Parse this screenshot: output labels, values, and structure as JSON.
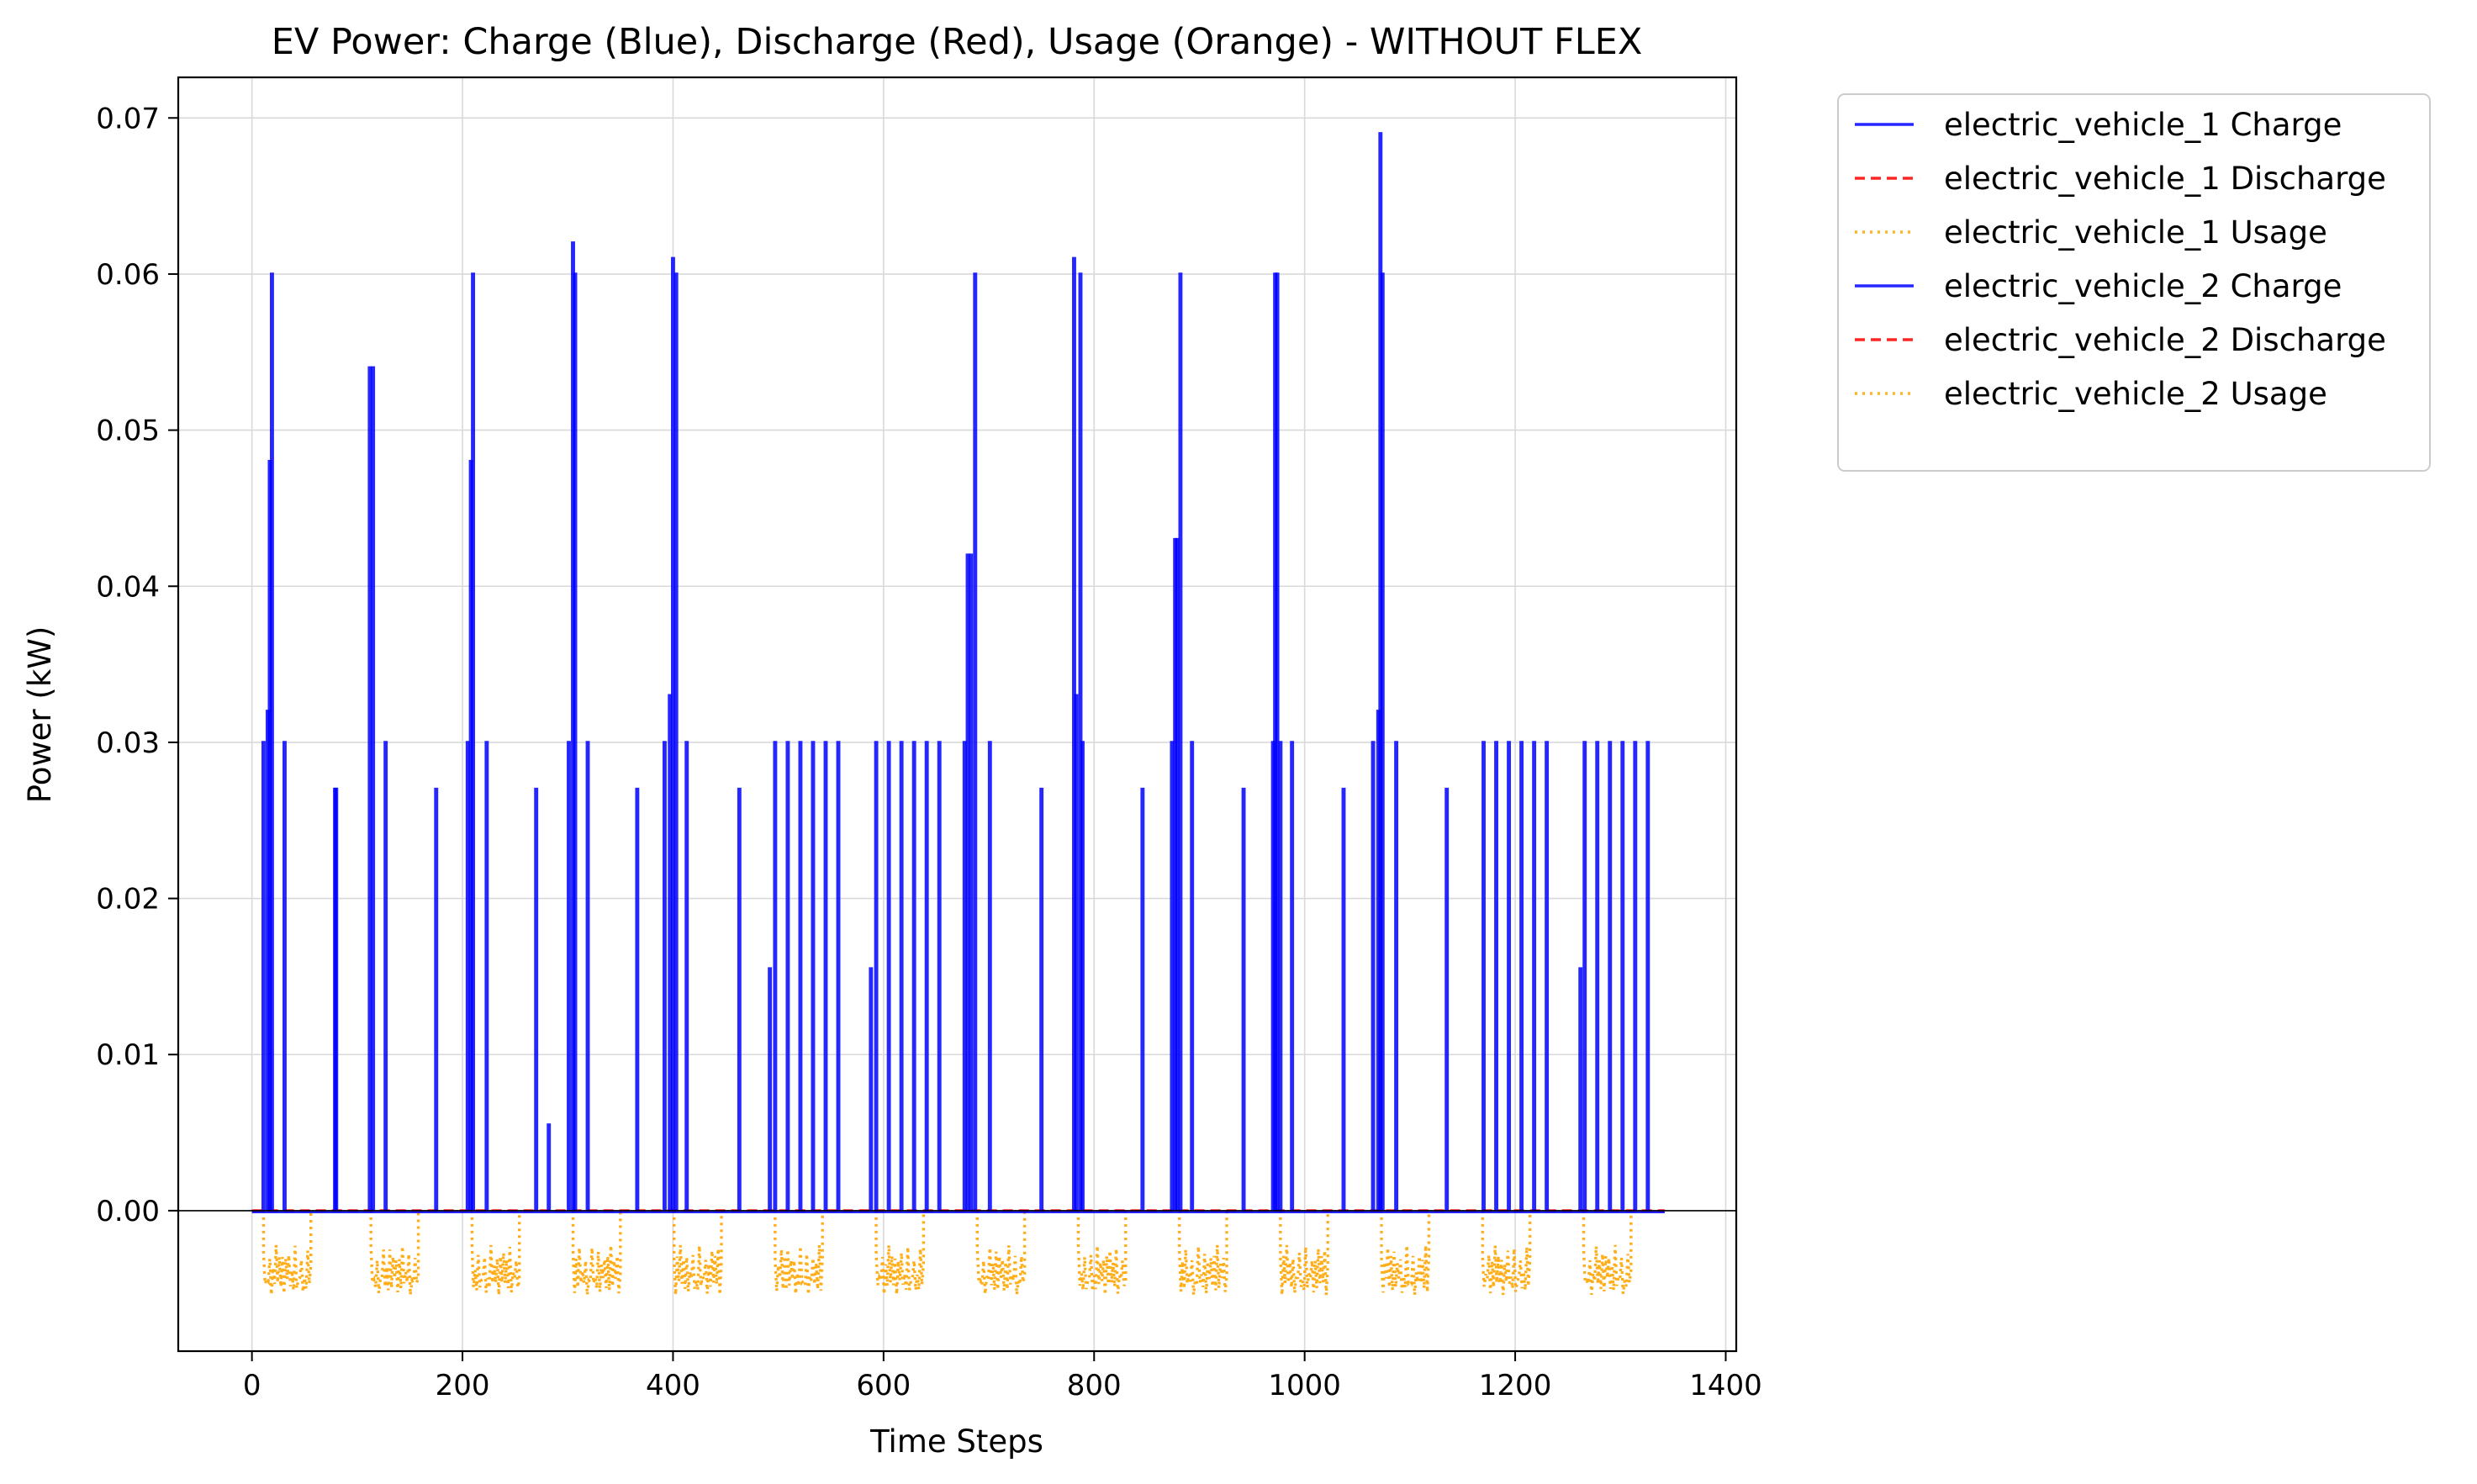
{
  "chart_data": {
    "type": "line",
    "title": "EV Power: Charge (Blue), Discharge (Red), Usage (Orange) - WITHOUT FLEX",
    "xlabel": "Time Steps",
    "ylabel": "Power (kW)",
    "xlim": [
      -70,
      1410
    ],
    "ylim": [
      -0.009,
      0.0726
    ],
    "x_ticks": [
      0,
      200,
      400,
      600,
      800,
      1000,
      1200,
      1400
    ],
    "x_tick_labels": [
      "0",
      "200",
      "400",
      "600",
      "800",
      "1000",
      "1200",
      "1400"
    ],
    "y_ticks": [
      0.0,
      0.01,
      0.02,
      0.03,
      0.04,
      0.05,
      0.06,
      0.07
    ],
    "y_tick_labels": [
      "0.00",
      "0.01",
      "0.02",
      "0.03",
      "0.04",
      "0.05",
      "0.06",
      "0.07"
    ],
    "grid": true,
    "legend_position": "outside-upper-right",
    "series": [
      {
        "name": "electric_vehicle_1 Charge",
        "color": "#0000ff",
        "style": "solid",
        "role": "charge"
      },
      {
        "name": "electric_vehicle_1 Discharge",
        "color": "#ff0000",
        "style": "dashed",
        "role": "discharge"
      },
      {
        "name": "electric_vehicle_1 Usage",
        "color": "#ffa500",
        "style": "dotted",
        "role": "usage"
      },
      {
        "name": "electric_vehicle_2 Charge",
        "color": "#0000ff",
        "style": "solid",
        "role": "charge"
      },
      {
        "name": "electric_vehicle_2 Discharge",
        "color": "#ff0000",
        "style": "dashed",
        "role": "discharge"
      },
      {
        "name": "electric_vehicle_2 Usage",
        "color": "#ffa500",
        "style": "dotted",
        "role": "usage"
      }
    ],
    "charge_spikes": [
      [
        11,
        0.03
      ],
      [
        15,
        0.032
      ],
      [
        17,
        0.048
      ],
      [
        19,
        0.06
      ],
      [
        31,
        0.03
      ],
      [
        79,
        0.027
      ],
      [
        80,
        0.027
      ],
      [
        112,
        0.054
      ],
      [
        115,
        0.054
      ],
      [
        127,
        0.03
      ],
      [
        175,
        0.027
      ],
      [
        205,
        0.03
      ],
      [
        208,
        0.048
      ],
      [
        210,
        0.06
      ],
      [
        223,
        0.03
      ],
      [
        270,
        0.027
      ],
      [
        282,
        0.0055
      ],
      [
        301,
        0.03
      ],
      [
        305,
        0.062
      ],
      [
        307,
        0.06
      ],
      [
        319,
        0.03
      ],
      [
        366,
        0.027
      ],
      [
        392,
        0.03
      ],
      [
        397,
        0.033
      ],
      [
        400,
        0.061
      ],
      [
        403,
        0.06
      ],
      [
        413,
        0.03
      ],
      [
        463,
        0.027
      ],
      [
        492,
        0.0155
      ],
      [
        497,
        0.03
      ],
      [
        509,
        0.03
      ],
      [
        521,
        0.03
      ],
      [
        533,
        0.03
      ],
      [
        545,
        0.03
      ],
      [
        557,
        0.03
      ],
      [
        588,
        0.0155
      ],
      [
        593,
        0.03
      ],
      [
        605,
        0.03
      ],
      [
        617,
        0.03
      ],
      [
        629,
        0.03
      ],
      [
        641,
        0.03
      ],
      [
        653,
        0.03
      ],
      [
        677,
        0.03
      ],
      [
        680,
        0.042
      ],
      [
        683,
        0.042
      ],
      [
        687,
        0.06
      ],
      [
        701,
        0.03
      ],
      [
        750,
        0.027
      ],
      [
        781,
        0.061
      ],
      [
        783,
        0.033
      ],
      [
        787,
        0.06
      ],
      [
        789,
        0.03
      ],
      [
        846,
        0.027
      ],
      [
        874,
        0.03
      ],
      [
        877,
        0.043
      ],
      [
        879,
        0.043
      ],
      [
        882,
        0.06
      ],
      [
        893,
        0.03
      ],
      [
        942,
        0.027
      ],
      [
        970,
        0.03
      ],
      [
        972,
        0.06
      ],
      [
        974,
        0.06
      ],
      [
        977,
        0.03
      ],
      [
        988,
        0.03
      ],
      [
        1037,
        0.027
      ],
      [
        1065,
        0.03
      ],
      [
        1070,
        0.032
      ],
      [
        1072,
        0.069
      ],
      [
        1074,
        0.06
      ],
      [
        1087,
        0.03
      ],
      [
        1135,
        0.027
      ],
      [
        1170,
        0.03
      ],
      [
        1182,
        0.03
      ],
      [
        1194,
        0.03
      ],
      [
        1206,
        0.03
      ],
      [
        1218,
        0.03
      ],
      [
        1230,
        0.03
      ],
      [
        1262,
        0.0155
      ],
      [
        1266,
        0.03
      ],
      [
        1278,
        0.03
      ],
      [
        1290,
        0.03
      ],
      [
        1302,
        0.03
      ],
      [
        1314,
        0.03
      ],
      [
        1326,
        0.03
      ]
    ],
    "series_x_range": [
      0,
      1342
    ],
    "usage_blocks": [
      [
        11,
        56
      ],
      [
        113,
        158
      ],
      [
        209,
        254
      ],
      [
        305,
        350
      ],
      [
        401,
        446
      ],
      [
        497,
        542
      ],
      [
        593,
        638
      ],
      [
        689,
        734
      ],
      [
        785,
        830
      ],
      [
        881,
        926
      ],
      [
        977,
        1022
      ],
      [
        1073,
        1118
      ],
      [
        1169,
        1214
      ],
      [
        1265,
        1310
      ]
    ],
    "usage_range": [
      -0.005,
      -0.0005
    ]
  }
}
